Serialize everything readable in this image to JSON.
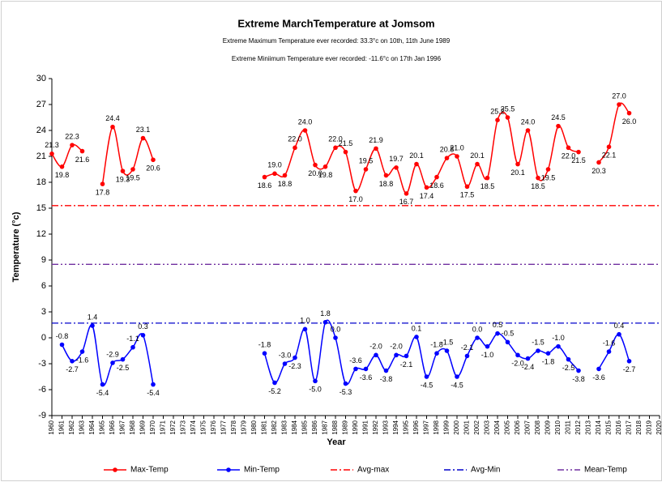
{
  "chart_data": {
    "type": "line",
    "title": "Extreme MarchTemperature at Jomsom",
    "subtitles": [
      "Extreme Maximum Temperature ever recorded: 33.3°c on 10th, 11th June 1989",
      "Extreme Miniimum Temperature ever recorded:  -11.6°c on    17th Jan 1996"
    ],
    "x_label": "Year",
    "y_label": "Temperature (°c)",
    "categories": [
      "1960",
      "1961",
      "1962",
      "1963",
      "1964",
      "1965",
      "1966",
      "1967",
      "1968",
      "1969",
      "1970",
      "1971",
      "1972",
      "1973",
      "1974",
      "1975",
      "1976",
      "1977",
      "1978",
      "1979",
      "1980",
      "1981",
      "1982",
      "1983",
      "1984",
      "1985",
      "1986",
      "1987",
      "1988",
      "1989",
      "1990",
      "1991",
      "1992",
      "1993",
      "1994",
      "1995",
      "1996",
      "1997",
      "1998",
      "1999",
      "2000",
      "2001",
      "2002",
      "2003",
      "2004",
      "2005",
      "2006",
      "2007",
      "2008",
      "2009",
      "2010",
      "2011",
      "2012",
      "2013",
      "2014",
      "2015",
      "2016",
      "2017",
      "2018",
      "2019",
      "2020"
    ],
    "ylim": [
      -9,
      30
    ],
    "yticks": [
      -9,
      -6,
      -3,
      0,
      3,
      6,
      9,
      12,
      15,
      18,
      21,
      24,
      27,
      30
    ],
    "grid": false,
    "legend": "bottom",
    "series": [
      {
        "name": "Max-Temp",
        "color": "#ff0000",
        "values": [
          21.3,
          19.8,
          22.3,
          21.6,
          null,
          17.8,
          24.4,
          19.3,
          19.5,
          23.1,
          20.6,
          null,
          null,
          null,
          null,
          null,
          null,
          null,
          null,
          null,
          null,
          18.6,
          19,
          18.8,
          22,
          24,
          20,
          19.8,
          22,
          21.5,
          17,
          19.5,
          21.9,
          18.8,
          19.7,
          16.7,
          20.1,
          17.4,
          18.6,
          20.8,
          21,
          17.5,
          20.1,
          18.5,
          25.2,
          25.5,
          20.1,
          24,
          18.5,
          19.5,
          24.5,
          22,
          21.5,
          null,
          20.3,
          22.1,
          27,
          26,
          null,
          null,
          null
        ],
        "value_labels": [
          "21.3",
          "19.8",
          "22.3",
          "21.6",
          null,
          "17.8",
          "24.4",
          "19.3",
          "19.5",
          "23.1",
          "20.6",
          null,
          null,
          null,
          null,
          null,
          null,
          null,
          null,
          null,
          null,
          "18.6",
          "19.0",
          "18.8",
          "22.0",
          "24.0",
          "20.0",
          "19.8",
          "22.0",
          "21.5",
          "17.0",
          "19.5",
          "21.9",
          "18.8",
          "19.7",
          "16.7",
          "20.1",
          "17.4",
          "18.6",
          "20.8",
          "21.0",
          "17.5",
          "20.1",
          "18.5",
          "25.2",
          "25.5",
          "20.1",
          "24.0",
          "18.5",
          "19.5",
          "24.5",
          "22.0",
          "21.5",
          null,
          "20.3",
          "22.1",
          "27.0",
          "26.0",
          null,
          null,
          null
        ]
      },
      {
        "name": "Min-Temp",
        "color": "#0000ff",
        "values": [
          null,
          -0.8,
          -2.7,
          -1.6,
          1.4,
          -5.4,
          -2.9,
          -2.5,
          -1.1,
          0.3,
          -5.4,
          null,
          null,
          null,
          null,
          null,
          null,
          null,
          null,
          null,
          null,
          -1.8,
          -5.2,
          -3,
          -2.3,
          1,
          -5,
          1.8,
          0,
          -5.3,
          -3.6,
          -3.6,
          -2,
          -3.8,
          -2,
          -2.1,
          0.1,
          -4.5,
          -1.8,
          -1.5,
          -4.5,
          -2.1,
          0,
          -1,
          0.5,
          -0.5,
          -2,
          -2.4,
          -1.5,
          -1.8,
          -1,
          -2.5,
          -3.8,
          null,
          -3.6,
          -1.6,
          0.4,
          -2.7,
          null,
          null,
          null
        ],
        "value_labels": [
          null,
          "-0.8",
          "-2.7",
          "-1.6",
          "1.4",
          "-5.4",
          "-2.9",
          "-2.5",
          "-1.1",
          "0.3",
          "-5.4",
          null,
          null,
          null,
          null,
          null,
          null,
          null,
          null,
          null,
          null,
          "-1.8",
          "-5.2",
          "-3.0",
          "-2.3",
          "1.0",
          "-5.0",
          "1.8",
          "0.0",
          "-5.3",
          "-3.6",
          "-3.6",
          "-2.0",
          "-3.8",
          "-2.0",
          "-2.1",
          "0.1",
          "-4.5",
          "-1.8",
          "-1.5",
          "-4.5",
          "-2.1",
          "0.0",
          "-1.0",
          "0.5",
          "-0.5",
          "-2.0",
          "-2.4",
          "-1.5",
          "-1.8",
          "-1.0",
          "-2.5",
          "-3.8",
          null,
          "-3.6",
          "-1.6",
          "0.4",
          "-2.7",
          null,
          null,
          null
        ]
      }
    ],
    "reference_lines": [
      {
        "name": "Avg-max",
        "color": "#ff0000",
        "value": 15.3,
        "dash": "8 3 2 3"
      },
      {
        "name": "Avg-Min",
        "color": "#0000cc",
        "value": 1.7,
        "dash": "8 3 2 3"
      },
      {
        "name": "Mean-Temp",
        "color": "#7030a0",
        "value": 8.5,
        "dash": "8 3 2 3 2 3"
      }
    ]
  }
}
